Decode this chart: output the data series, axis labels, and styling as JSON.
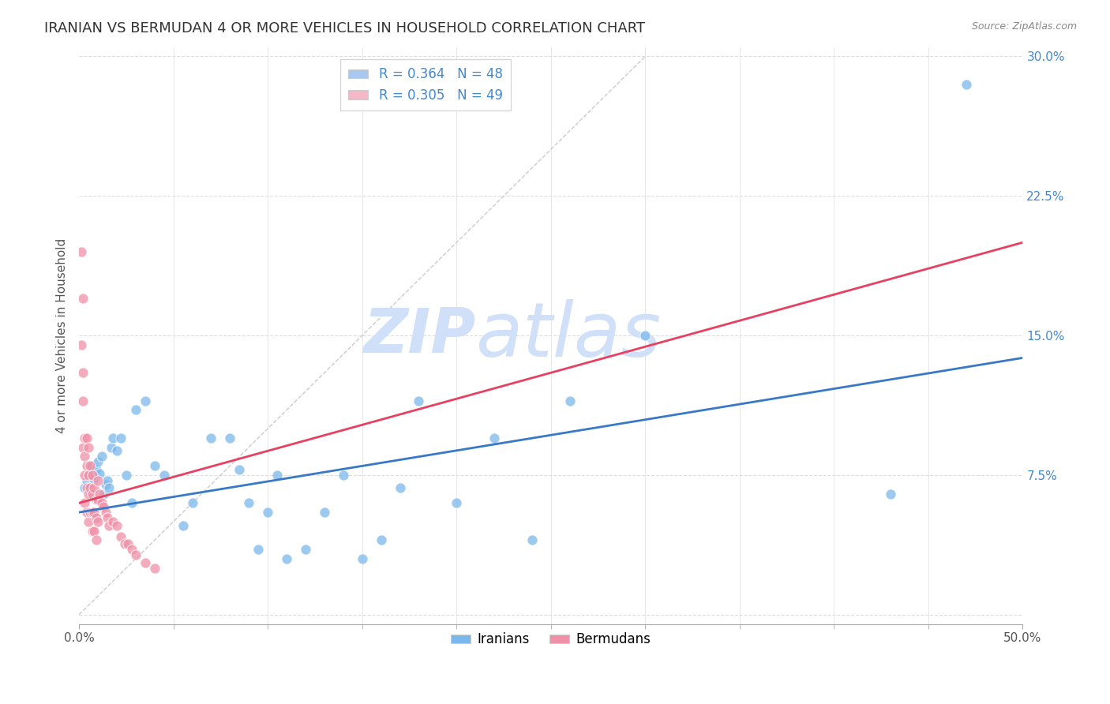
{
  "title": "IRANIAN VS BERMUDAN 4 OR MORE VEHICLES IN HOUSEHOLD CORRELATION CHART",
  "source": "Source: ZipAtlas.com",
  "ylabel": "4 or more Vehicles in Household",
  "xlim": [
    0.0,
    0.5
  ],
  "ylim": [
    -0.005,
    0.305
  ],
  "yticks": [
    0.0,
    0.075,
    0.15,
    0.225,
    0.3
  ],
  "yticklabels_right": [
    "",
    "7.5%",
    "15.0%",
    "22.5%",
    "30.0%"
  ],
  "watermark_zip": "ZIP",
  "watermark_atlas": "atlas",
  "legend_items": [
    {
      "label": "R = 0.364   N = 48",
      "color": "#a8c8f0"
    },
    {
      "label": "R = 0.305   N = 49",
      "color": "#f4b8c8"
    }
  ],
  "iranian_scatter_x": [
    0.003,
    0.004,
    0.005,
    0.006,
    0.007,
    0.008,
    0.009,
    0.01,
    0.011,
    0.012,
    0.013,
    0.014,
    0.015,
    0.016,
    0.017,
    0.018,
    0.02,
    0.022,
    0.025,
    0.028,
    0.03,
    0.035,
    0.04,
    0.045,
    0.055,
    0.06,
    0.07,
    0.08,
    0.085,
    0.09,
    0.095,
    0.1,
    0.105,
    0.11,
    0.12,
    0.13,
    0.14,
    0.15,
    0.16,
    0.17,
    0.18,
    0.2,
    0.22,
    0.24,
    0.26,
    0.3,
    0.43,
    0.47
  ],
  "iranian_scatter_y": [
    0.068,
    0.072,
    0.068,
    0.075,
    0.08,
    0.073,
    0.078,
    0.082,
    0.076,
    0.085,
    0.065,
    0.07,
    0.072,
    0.068,
    0.09,
    0.095,
    0.088,
    0.095,
    0.075,
    0.06,
    0.11,
    0.115,
    0.08,
    0.075,
    0.048,
    0.06,
    0.095,
    0.095,
    0.078,
    0.06,
    0.035,
    0.055,
    0.075,
    0.03,
    0.035,
    0.055,
    0.075,
    0.03,
    0.04,
    0.068,
    0.115,
    0.06,
    0.095,
    0.04,
    0.115,
    0.15,
    0.065,
    0.285
  ],
  "bermudan_scatter_x": [
    0.001,
    0.001,
    0.002,
    0.002,
    0.002,
    0.002,
    0.003,
    0.003,
    0.003,
    0.003,
    0.004,
    0.004,
    0.004,
    0.004,
    0.005,
    0.005,
    0.005,
    0.005,
    0.006,
    0.006,
    0.006,
    0.007,
    0.007,
    0.007,
    0.007,
    0.008,
    0.008,
    0.008,
    0.009,
    0.009,
    0.009,
    0.01,
    0.01,
    0.01,
    0.011,
    0.012,
    0.013,
    0.014,
    0.015,
    0.016,
    0.018,
    0.02,
    0.022,
    0.024,
    0.026,
    0.028,
    0.03,
    0.035,
    0.04
  ],
  "bermudan_scatter_y": [
    0.195,
    0.145,
    0.17,
    0.13,
    0.115,
    0.09,
    0.095,
    0.085,
    0.075,
    0.06,
    0.095,
    0.08,
    0.068,
    0.055,
    0.09,
    0.075,
    0.065,
    0.05,
    0.08,
    0.068,
    0.055,
    0.075,
    0.065,
    0.055,
    0.045,
    0.068,
    0.055,
    0.045,
    0.062,
    0.052,
    0.04,
    0.072,
    0.062,
    0.05,
    0.065,
    0.06,
    0.058,
    0.055,
    0.052,
    0.048,
    0.05,
    0.048,
    0.042,
    0.038,
    0.038,
    0.035,
    0.032,
    0.028,
    0.025
  ],
  "iranian_line_x": [
    0.0,
    0.5
  ],
  "iranian_line_y": [
    0.055,
    0.138
  ],
  "bermudan_line_x": [
    0.0,
    0.5
  ],
  "bermudan_line_y": [
    0.06,
    0.2
  ],
  "diagonal_line_x": [
    0.0,
    0.3
  ],
  "diagonal_line_y": [
    0.0,
    0.3
  ],
  "iranian_color": "#7ab8ec",
  "bermudan_color": "#f090a8",
  "iranian_line_color": "#3878c8",
  "bermudan_line_color": "#e84060",
  "diagonal_color": "#cccccc",
  "background_color": "#ffffff",
  "grid_color": "#dddddd",
  "title_fontsize": 13,
  "axis_fontsize": 11,
  "tick_fontsize": 11,
  "watermark_color": "#d0e0f8",
  "watermark_fontsize_zip": 56,
  "watermark_fontsize_atlas": 70
}
